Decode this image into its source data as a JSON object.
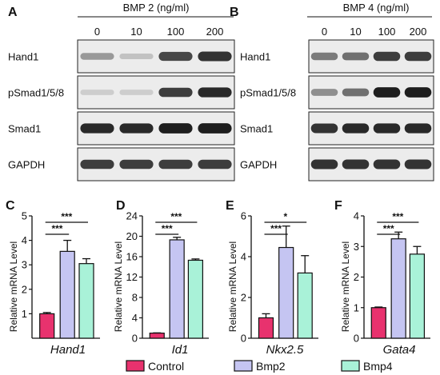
{
  "panels": {
    "A": {
      "letter": "A",
      "header": "BMP 2 (ng/ml)",
      "doses": [
        "0",
        "10",
        "100",
        "200"
      ],
      "blots": [
        {
          "label": "Hand1",
          "bands": [
            0.35,
            0.15,
            0.75,
            0.85
          ]
        },
        {
          "label": "pSmad1/5/8",
          "bands": [
            0.1,
            0.1,
            0.8,
            0.9
          ]
        },
        {
          "label": "Smad1",
          "bands": [
            0.9,
            0.9,
            0.95,
            0.95
          ]
        },
        {
          "label": "GAPDH",
          "bands": [
            0.8,
            0.8,
            0.8,
            0.8
          ]
        }
      ]
    },
    "B": {
      "letter": "B",
      "header": "BMP 4 (ng/ml)",
      "doses": [
        "0",
        "10",
        "100",
        "200"
      ],
      "blots": [
        {
          "label": "Hand1",
          "bands": [
            0.5,
            0.55,
            0.8,
            0.8
          ]
        },
        {
          "label": "pSmad1/5/8",
          "bands": [
            0.4,
            0.55,
            0.95,
            0.95
          ]
        },
        {
          "label": "Smad1",
          "bands": [
            0.85,
            0.9,
            0.9,
            0.9
          ]
        },
        {
          "label": "GAPDH",
          "bands": [
            0.85,
            0.85,
            0.85,
            0.85
          ]
        }
      ]
    }
  },
  "chart_data": [
    {
      "type": "bar",
      "panel": "C",
      "gene": "Hand1",
      "ylabel": "Relative mRNA Level",
      "ylim": [
        0,
        5
      ],
      "yticks": [
        1,
        2,
        3,
        4,
        5
      ],
      "categories": [
        "Control",
        "Bmp2",
        "Bmp4"
      ],
      "values": [
        1.0,
        3.55,
        3.05
      ],
      "errors": [
        0.05,
        0.45,
        0.2
      ],
      "sig": [
        {
          "from": 0,
          "to": 1,
          "label": "***"
        },
        {
          "from": 0,
          "to": 2,
          "label": "***"
        }
      ]
    },
    {
      "type": "bar",
      "panel": "D",
      "gene": "Id1",
      "ylabel": "Relative mRNA Level",
      "ylim": [
        0,
        24
      ],
      "yticks": [
        0,
        4,
        8,
        12,
        16,
        20,
        24
      ],
      "categories": [
        "Control",
        "Bmp2",
        "Bmp4"
      ],
      "values": [
        1.0,
        19.3,
        15.3
      ],
      "errors": [
        0.05,
        0.5,
        0.25
      ],
      "sig": [
        {
          "from": 0,
          "to": 1,
          "label": "***"
        },
        {
          "from": 0,
          "to": 2,
          "label": "***"
        }
      ]
    },
    {
      "type": "bar",
      "panel": "E",
      "gene": "Nkx2.5",
      "ylabel": "Relative mRNA Level",
      "ylim": [
        0,
        6
      ],
      "yticks": [
        0,
        2,
        4,
        6
      ],
      "categories": [
        "Control",
        "Bmp2",
        "Bmp4"
      ],
      "values": [
        1.0,
        4.45,
        3.2
      ],
      "errors": [
        0.2,
        1.05,
        0.85
      ],
      "sig": [
        {
          "from": 0,
          "to": 1,
          "label": "***"
        },
        {
          "from": 0,
          "to": 2,
          "label": "*"
        }
      ]
    },
    {
      "type": "bar",
      "panel": "F",
      "gene": "Gata4",
      "ylabel": "Relative mRNA Level",
      "ylim": [
        0,
        4
      ],
      "yticks": [
        0,
        1,
        2,
        3,
        4
      ],
      "categories": [
        "Control",
        "Bmp2",
        "Bmp4"
      ],
      "values": [
        1.0,
        3.25,
        2.75
      ],
      "errors": [
        0.02,
        0.22,
        0.25
      ],
      "sig": [
        {
          "from": 0,
          "to": 1,
          "label": "***"
        },
        {
          "from": 0,
          "to": 2,
          "label": "***"
        }
      ]
    }
  ],
  "legend": [
    {
      "name": "Control",
      "color": "#e8326e"
    },
    {
      "name": "Bmp2",
      "color": "#c5c5f2"
    },
    {
      "name": "Bmp4",
      "color": "#a9f2d8"
    }
  ]
}
